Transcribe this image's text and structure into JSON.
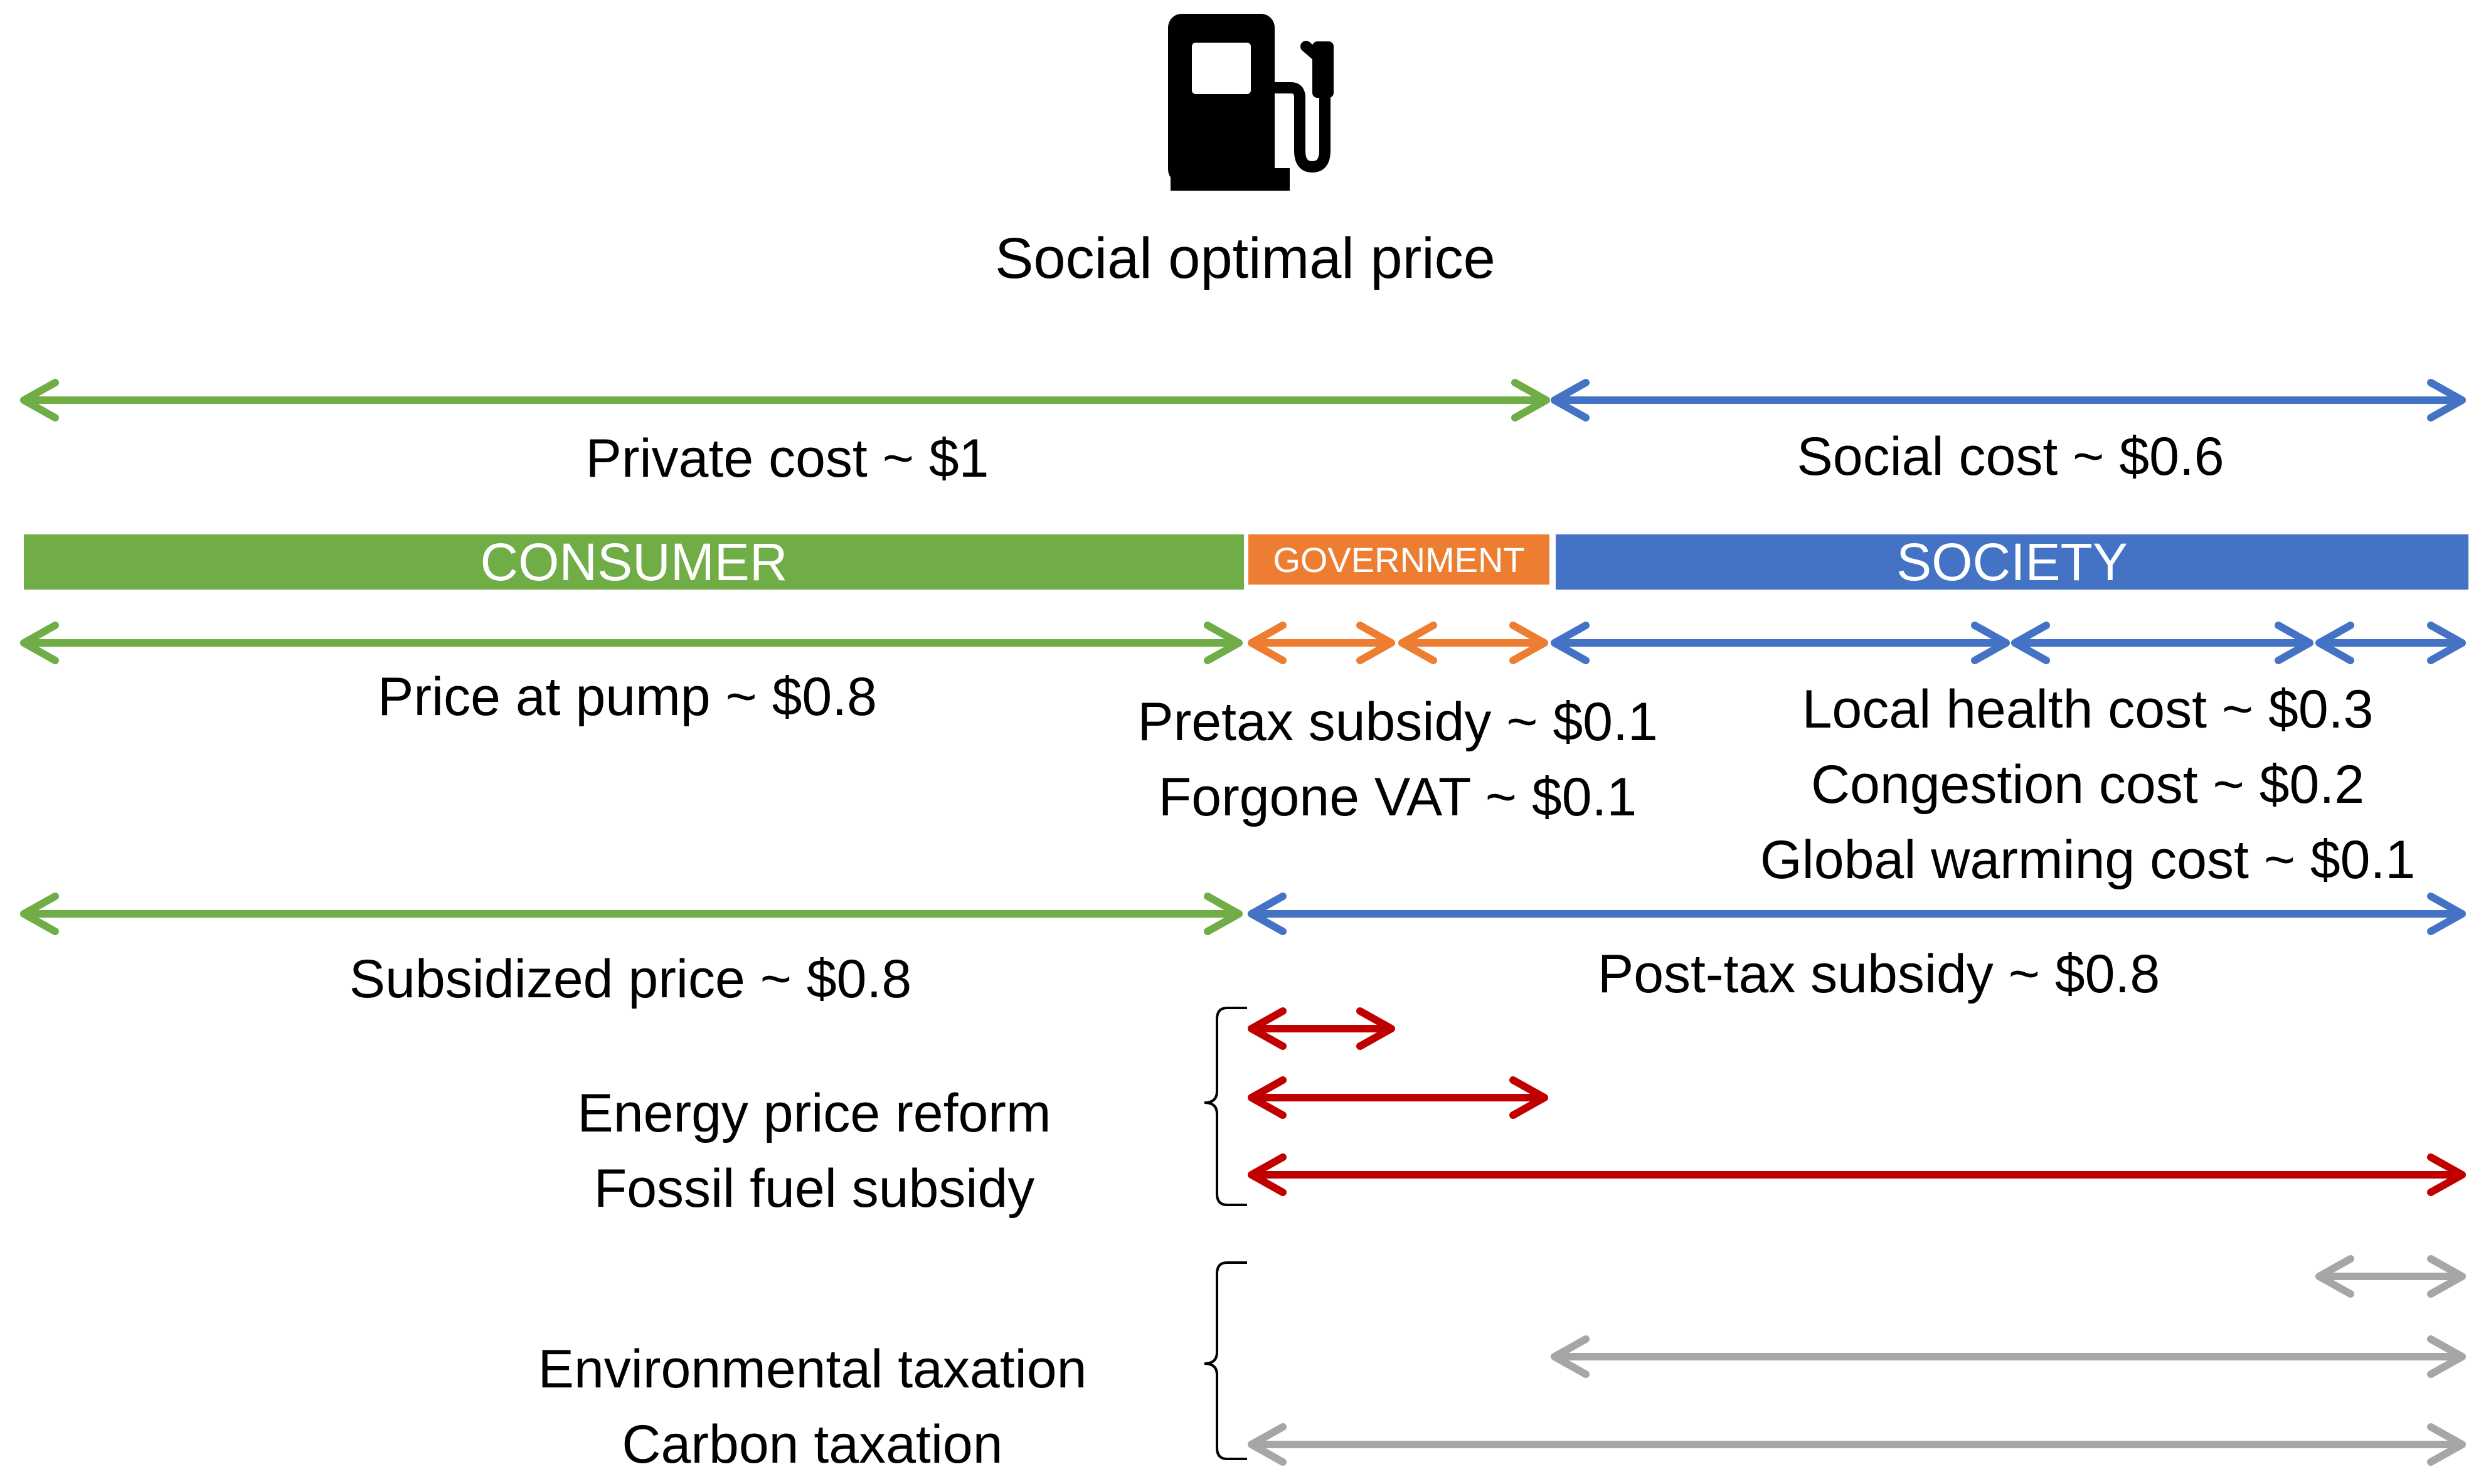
{
  "title": "Social optimal price",
  "icons": {
    "pump": "fuel-pump-icon"
  },
  "colors": {
    "consumer": "#70AD47",
    "government": "#ED7D31",
    "society": "#4472C4",
    "reform": "#C00000",
    "taxation": "#A6A6A6"
  },
  "bars": {
    "consumer": "CONSUMER",
    "government": "GOVERNMENT",
    "society": "SOCIETY"
  },
  "labels": {
    "private_cost": "Private cost ~ $1",
    "social_cost": "Social cost ~ $0.6",
    "price_at_pump": "Price at pump ~ $0.8",
    "pretax_subsidy": "Pretax subsidy ~ $0.1",
    "forgone_vat": "Forgone VAT ~ $0.1",
    "local_health": "Local health cost ~ $0.3",
    "congestion": "Congestion cost ~ $0.2",
    "global_warming": "Global warming cost ~ $0.1",
    "subsidized_price": "Subsidized price ~ $0.8",
    "post_tax_subsidy": "Post-tax subsidy ~ $0.8",
    "energy_price_reform": "Energy price reform",
    "fossil_fuel_subsidy": "Fossil fuel subsidy",
    "environmental_taxation": "Environmental taxation",
    "carbon_taxation": "Carbon taxation"
  }
}
